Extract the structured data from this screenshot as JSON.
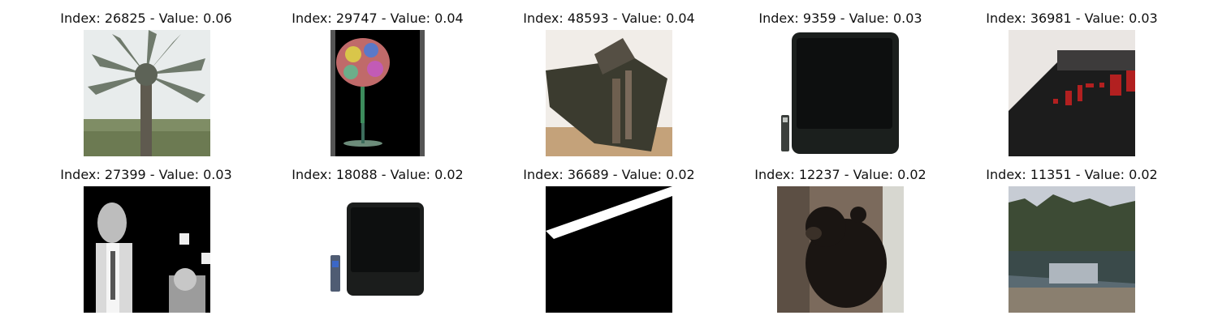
{
  "figure": {
    "panels": [
      {
        "label": "Index: 26825 - Value: 0.06",
        "subject": "palm-tree-icon"
      },
      {
        "label": "Index: 29747 - Value: 0.04",
        "subject": "flower-vase-icon"
      },
      {
        "label": "Index: 48593 - Value: 0.04",
        "subject": "box-object-icon"
      },
      {
        "label": "Index: 9359 - Value: 0.03",
        "subject": "television-icon"
      },
      {
        "label": "Index: 36981 - Value: 0.03",
        "subject": "alarm-clock-icon"
      },
      {
        "label": "Index: 27399 - Value: 0.03",
        "subject": "person-portrait-icon"
      },
      {
        "label": "Index: 18088 - Value: 0.02",
        "subject": "television-icon"
      },
      {
        "label": "Index: 36689 - Value: 0.02",
        "subject": "light-streak-icon"
      },
      {
        "label": "Index: 12237 - Value: 0.02",
        "subject": "bear-icon"
      },
      {
        "label": "Index: 11351 - Value: 0.02",
        "subject": "lake-landscape-icon"
      }
    ]
  }
}
